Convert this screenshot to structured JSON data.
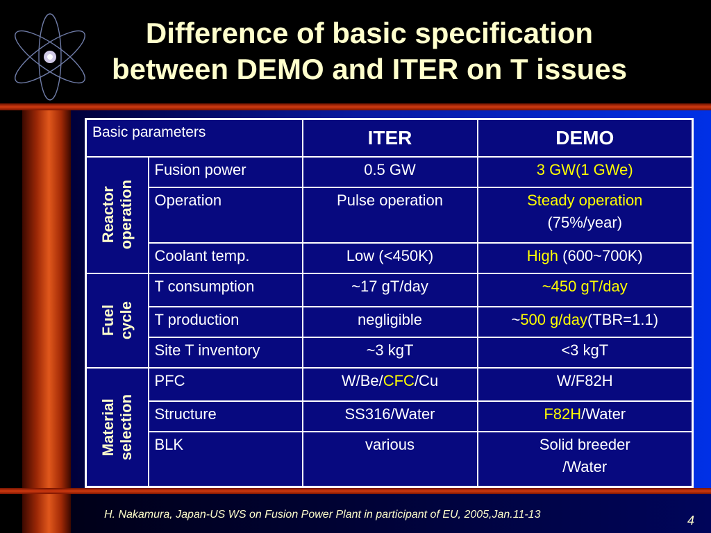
{
  "title": {
    "line1": "Difference of basic specification",
    "line2": "between DEMO and ITER on T issues"
  },
  "decoration": {
    "icon": "atom-icon"
  },
  "table": {
    "header": {
      "basic": "Basic parameters",
      "iter": "ITER",
      "demo": "DEMO"
    },
    "groups": {
      "reactor": "Reactor\noperation",
      "fuel": "Fuel\ncycle",
      "material": "Material\nselection"
    },
    "rows": {
      "fusion_power": {
        "param": "Fusion power",
        "iter": "0.5 GW",
        "demo_hl": "3 GW(1 GWe)"
      },
      "operation": {
        "param": "Operation",
        "iter": "Pulse operation",
        "demo_hl": "Steady operation",
        "demo_rest": "(75%/year)"
      },
      "coolant": {
        "param": "Coolant temp.",
        "iter": "Low (<450K)",
        "demo_hl": "High",
        "demo_rest": " (600~700K)"
      },
      "t_consumption": {
        "param": "T consumption",
        "iter": "~17 gT/day",
        "demo_hl": "~450 gT/day"
      },
      "t_production": {
        "param": "T production",
        "iter": "negligible",
        "demo_pre": "~",
        "demo_hl": "500 g/day",
        "demo_rest": "(TBR=1.1)"
      },
      "site_inventory": {
        "param": "Site T inventory",
        "iter": "~3 kgT",
        "demo": "<3 kgT"
      },
      "pfc": {
        "param": "PFC",
        "iter_pre": "W/Be/",
        "iter_hl": "CFC",
        "iter_post": "/Cu",
        "demo": "W/F82H"
      },
      "structure": {
        "param": "Structure",
        "iter": "SS316/Water",
        "demo_hl": "F82H",
        "demo_rest": "/Water"
      },
      "blk": {
        "param": "BLK",
        "iter": "various",
        "demo_line1": "Solid breeder",
        "demo_line2": "/Water"
      }
    }
  },
  "footer": {
    "citation": "H. Nakamura, Japan-US WS on Fusion Power Plant in participant of EU, 2005,Jan.11-13",
    "page": "4"
  },
  "colors": {
    "title": "#ffffcc",
    "highlight": "#ffff00",
    "table_bg": "#07097f",
    "bar": "#d03a10"
  }
}
